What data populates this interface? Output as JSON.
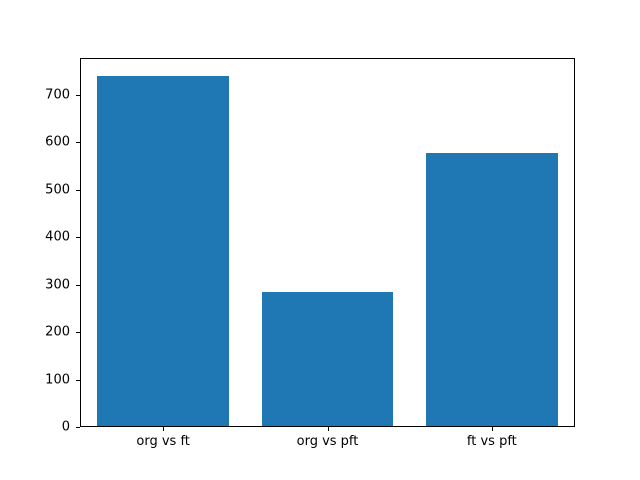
{
  "chart_data": {
    "type": "bar",
    "title": "",
    "xlabel": "",
    "ylabel": "",
    "categories": [
      "org vs ft",
      "org vs pft",
      "ft vs pft"
    ],
    "values": [
      740,
      283,
      578
    ],
    "ylim": [
      0,
      777
    ],
    "yticks": [
      0,
      100,
      200,
      300,
      400,
      500,
      600,
      700
    ],
    "bar_color": "#1f77b4",
    "background_color": "#ffffff",
    "axis_color": "#000000",
    "grid": false,
    "legend": false
  }
}
